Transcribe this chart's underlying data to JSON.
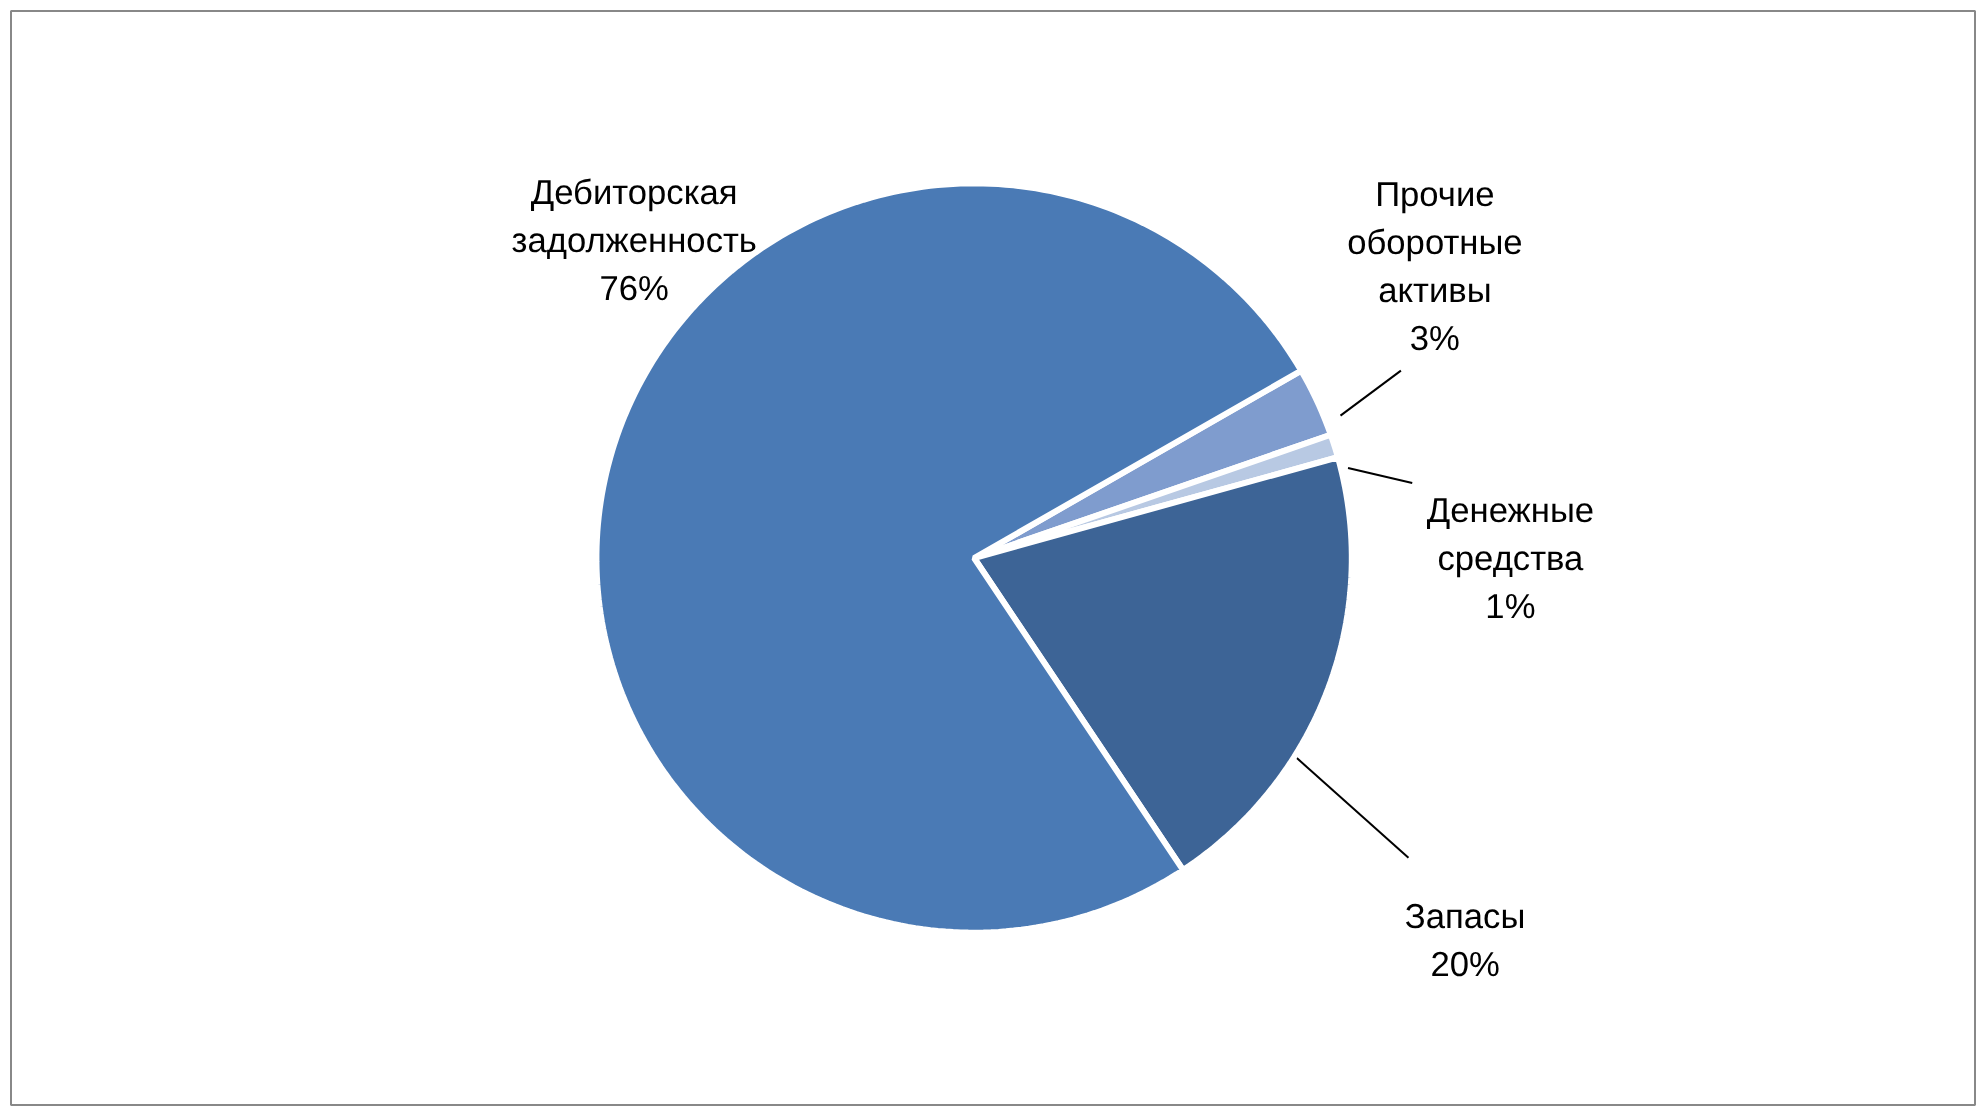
{
  "chart_data": {
    "type": "pie",
    "categories": [
      "Прочие оборотные активы",
      "Денежные средства",
      "Запасы",
      "Дебиторская задолженность"
    ],
    "values": [
      3,
      1,
      20,
      76
    ],
    "colors": [
      "#7f9cce",
      "#b8c9e3",
      "#3d6496",
      "#4a7ab5"
    ],
    "value_labels": [
      "3%",
      "1%",
      "20%",
      "76%"
    ]
  }
}
